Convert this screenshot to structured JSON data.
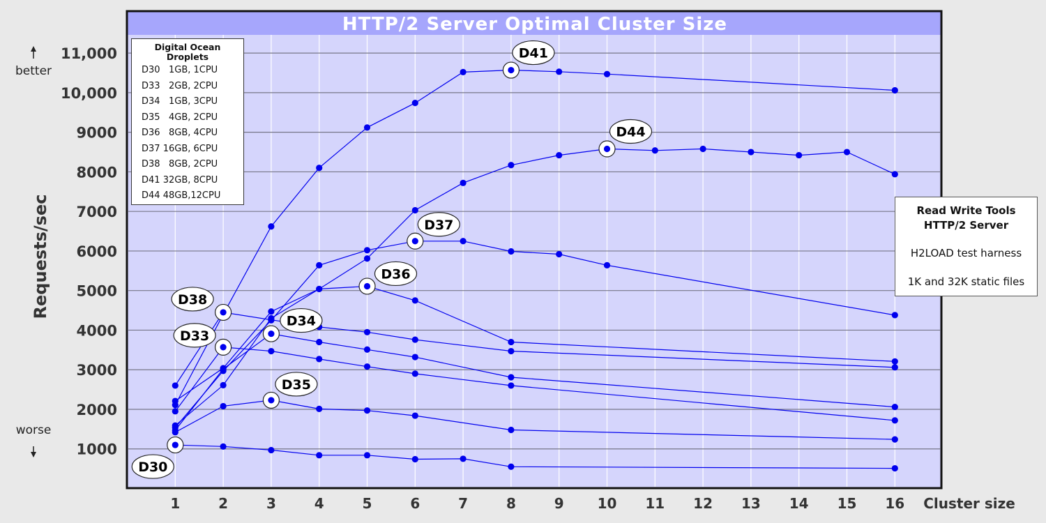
{
  "chart_data": {
    "type": "line",
    "title": "HTTP/2 Server Optimal Cluster Size",
    "xlabel": "Cluster size",
    "ylabel": "Requests/sec",
    "x_ticks": [
      1,
      2,
      3,
      4,
      5,
      6,
      7,
      8,
      9,
      10,
      11,
      12,
      13,
      14,
      15,
      16
    ],
    "y_ticks": [
      {
        "value": 1000,
        "label": "1000"
      },
      {
        "value": 2000,
        "label": "2000"
      },
      {
        "value": 3000,
        "label": "3000"
      },
      {
        "value": 4000,
        "label": "4000"
      },
      {
        "value": 5000,
        "label": "5000"
      },
      {
        "value": 6000,
        "label": "6000"
      },
      {
        "value": 7000,
        "label": "7000"
      },
      {
        "value": 8000,
        "label": "8000"
      },
      {
        "value": 9000,
        "label": "9000"
      },
      {
        "value": 10000,
        "label": "10,000"
      },
      {
        "value": 11000,
        "label": "11,000"
      }
    ],
    "xlim": [
      0,
      17
    ],
    "ylim": [
      0,
      12000
    ],
    "better_label": "better",
    "worse_label": "worse",
    "grid": true,
    "series": [
      {
        "name": "D30",
        "points": [
          [
            1,
            1100
          ],
          [
            2,
            1060
          ],
          [
            3,
            970
          ],
          [
            4,
            840
          ],
          [
            5,
            840
          ],
          [
            6,
            740
          ],
          [
            7,
            750
          ],
          [
            8,
            550
          ],
          [
            16,
            510
          ]
        ],
        "optimal": [
          1,
          1100
        ]
      },
      {
        "name": "D33",
        "points": [
          [
            1,
            1950
          ],
          [
            2,
            3570
          ],
          [
            3,
            3470
          ],
          [
            4,
            3270
          ],
          [
            5,
            3080
          ],
          [
            6,
            2900
          ],
          [
            8,
            2600
          ],
          [
            16,
            1720
          ]
        ],
        "optimal": [
          2,
          3570
        ]
      },
      {
        "name": "D34",
        "points": [
          [
            1,
            1470
          ],
          [
            2,
            3020
          ],
          [
            3,
            3910
          ],
          [
            4,
            3700
          ],
          [
            5,
            3510
          ],
          [
            6,
            3320
          ],
          [
            8,
            2810
          ],
          [
            16,
            2060
          ]
        ],
        "optimal": [
          3,
          3910
        ]
      },
      {
        "name": "D35",
        "points": [
          [
            1,
            1420
          ],
          [
            2,
            2080
          ],
          [
            3,
            2230
          ],
          [
            4,
            2010
          ],
          [
            5,
            1970
          ],
          [
            6,
            1840
          ],
          [
            8,
            1480
          ],
          [
            16,
            1240
          ]
        ],
        "optimal": [
          3,
          2230
        ]
      },
      {
        "name": "D36",
        "points": [
          [
            1,
            1590
          ],
          [
            2,
            2610
          ],
          [
            3,
            4300
          ],
          [
            4,
            5040
          ],
          [
            5,
            5110
          ],
          [
            6,
            4750
          ],
          [
            8,
            3700
          ],
          [
            16,
            3210
          ]
        ],
        "optimal": [
          5,
          5110
        ]
      },
      {
        "name": "D37",
        "points": [
          [
            1,
            1540
          ],
          [
            2,
            2970
          ],
          [
            3,
            4250
          ],
          [
            4,
            5640
          ],
          [
            5,
            6020
          ],
          [
            6,
            6250
          ],
          [
            7,
            6250
          ],
          [
            8,
            5990
          ],
          [
            9,
            5920
          ],
          [
            10,
            5640
          ],
          [
            16,
            4380
          ]
        ],
        "optimal": [
          6,
          6250
        ]
      },
      {
        "name": "D38",
        "points": [
          [
            1,
            2600
          ],
          [
            2,
            4450
          ],
          [
            3,
            4260
          ],
          [
            4,
            4080
          ],
          [
            5,
            3950
          ],
          [
            6,
            3760
          ],
          [
            8,
            3470
          ],
          [
            16,
            3060
          ]
        ],
        "optimal": [
          2,
          4450
        ]
      },
      {
        "name": "D41",
        "points": [
          [
            1,
            2110
          ],
          [
            2,
            4400
          ],
          [
            3,
            6620
          ],
          [
            4,
            8100
          ],
          [
            5,
            9120
          ],
          [
            6,
            9740
          ],
          [
            7,
            10520
          ],
          [
            8,
            10570
          ],
          [
            9,
            10530
          ],
          [
            10,
            10470
          ],
          [
            16,
            10060
          ]
        ],
        "optimal": [
          8,
          10570
        ]
      },
      {
        "name": "D44",
        "points": [
          [
            1,
            2210
          ],
          [
            2,
            3040
          ],
          [
            3,
            4470
          ],
          [
            4,
            5040
          ],
          [
            5,
            5810
          ],
          [
            6,
            7030
          ],
          [
            7,
            7720
          ],
          [
            8,
            8170
          ],
          [
            9,
            8420
          ],
          [
            10,
            8580
          ],
          [
            11,
            8540
          ],
          [
            12,
            8580
          ],
          [
            13,
            8500
          ],
          [
            14,
            8420
          ],
          [
            15,
            8500
          ],
          [
            16,
            7940
          ]
        ],
        "optimal": [
          10,
          8580
        ]
      }
    ],
    "colors": {
      "line": "#0000ee",
      "plot_bg": "#d5d5fc",
      "title_bar": "#a6a6fc",
      "page_bg": "#e9e9e9"
    }
  },
  "legend": {
    "title_line1": "Digital Ocean",
    "title_line2": "Droplets",
    "rows": [
      {
        "id": "D30",
        "spec": "1GB, 1CPU"
      },
      {
        "id": "D33",
        "spec": "2GB, 2CPU"
      },
      {
        "id": "D34",
        "spec": "1GB, 3CPU"
      },
      {
        "id": "D35",
        "spec": "4GB, 2CPU"
      },
      {
        "id": "D36",
        "spec": "8GB, 4CPU"
      },
      {
        "id": "D37",
        "spec": "16GB, 6CPU"
      },
      {
        "id": "D38",
        "spec": "8GB, 2CPU"
      },
      {
        "id": "D41",
        "spec": "32GB, 8CPU"
      },
      {
        "id": "D44",
        "spec": "48GB,12CPU"
      }
    ]
  },
  "info": {
    "title_line1": "Read Write Tools",
    "title_line2": "HTTP/2 Server",
    "line1": "H2LOAD test harness",
    "line2": "1K and 32K static files"
  }
}
